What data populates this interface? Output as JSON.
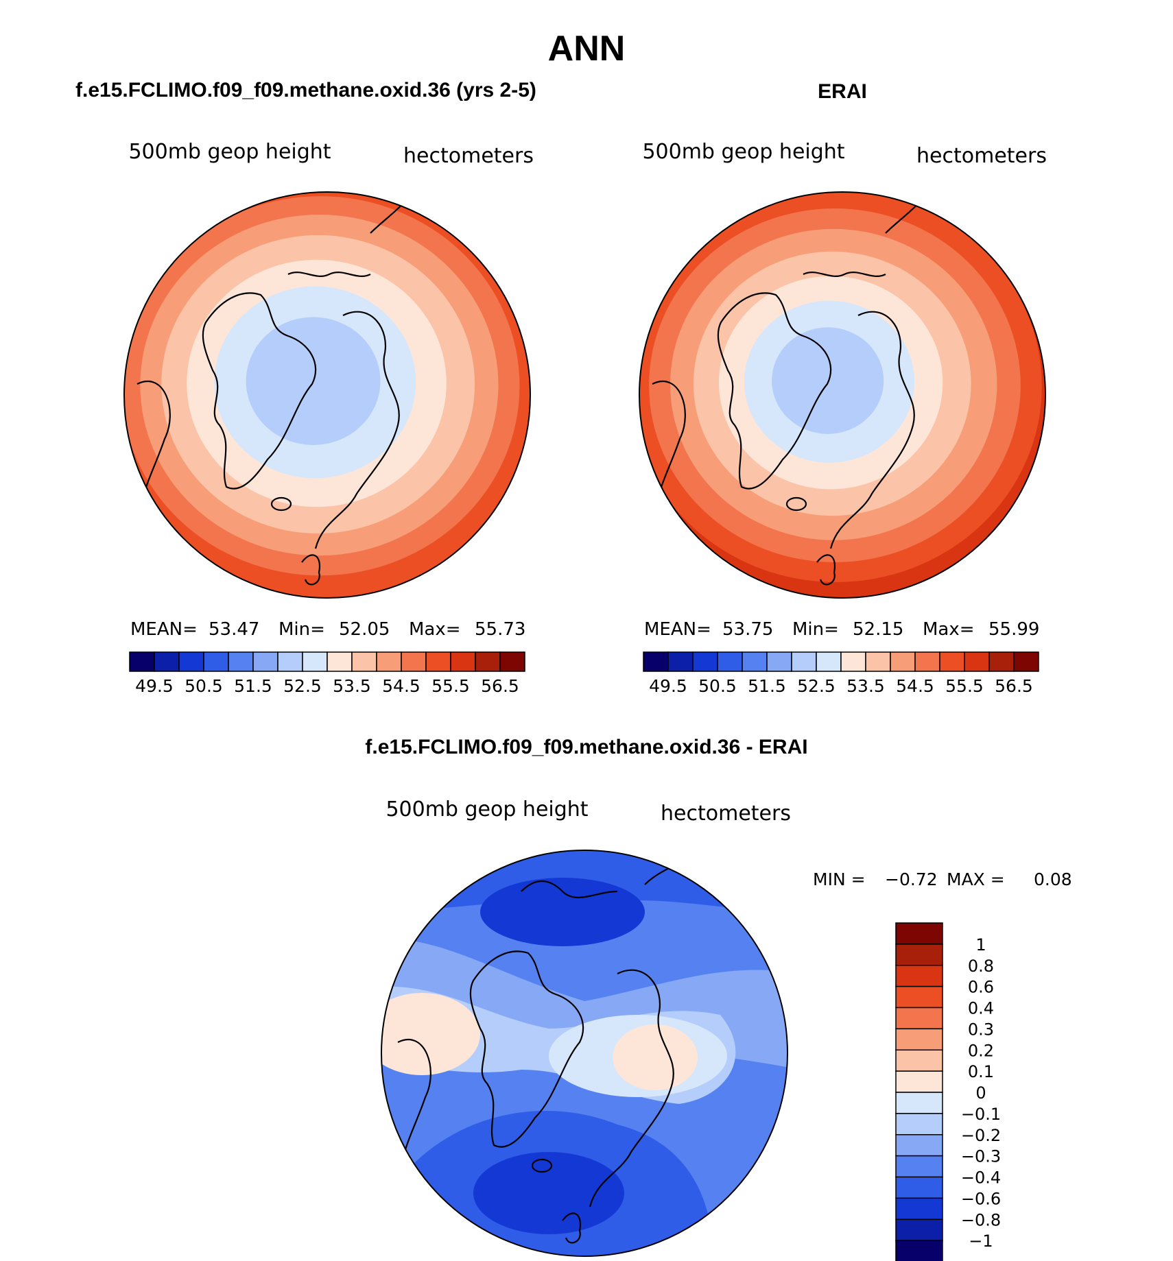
{
  "chart_data": {
    "type": "contour-map",
    "title": "ANN",
    "color_scale": [
      "#08006a",
      "#0b1fa8",
      "#1438d4",
      "#2f5de8",
      "#5582f0",
      "#86a8f5",
      "#b4cdfa",
      "#d6e6fb",
      "#fde6d8",
      "#fbc3a7",
      "#f79d78",
      "#f2754e",
      "#ec4f24",
      "#d93512",
      "#a9200a",
      "#7d0502"
    ],
    "diff_color_scale": [
      "#08006a",
      "#0b1fa8",
      "#1438d4",
      "#2f5de8",
      "#5582f0",
      "#86a8f5",
      "#b4cdfa",
      "#d6e6fb",
      "#fde6d8",
      "#fbc3a7",
      "#f79d78",
      "#f2754e",
      "#ec4f24",
      "#d93512",
      "#a9200a",
      "#7d0502"
    ],
    "panels": [
      {
        "heading": "f.e15.FCLIMO.f09_f09.methane.oxid.36 (yrs 2-5)",
        "variable": "500mb geop height",
        "units": "hectometers",
        "mean_label": "MEAN=",
        "mean": "53.47",
        "min_label": "Min=",
        "min": "52.05",
        "max_label": "Max=",
        "max": "55.73",
        "colorbar_ticks": [
          "49.5",
          "50.5",
          "51.5",
          "52.5",
          "53.5",
          "54.5",
          "55.5",
          "56.5"
        ],
        "field_levels": [
          0.3,
          0.45,
          0.58,
          0.7,
          0.8,
          0.89,
          0.96
        ],
        "field_colors": [
          "#b4cdfa",
          "#d6e6fb",
          "#fde6d8",
          "#fbc3a7",
          "#f79d78",
          "#f2754e",
          "#ec4f24",
          "#ec4f24"
        ]
      },
      {
        "heading": "ERAI",
        "variable": "500mb geop height",
        "units": "hectometers",
        "mean_label": "MEAN=",
        "mean": "53.75",
        "min_label": "Min=",
        "min": "52.15",
        "max_label": "Max=",
        "max": "55.99",
        "colorbar_ticks": [
          "49.5",
          "50.5",
          "51.5",
          "52.5",
          "53.5",
          "54.5",
          "55.5",
          "56.5"
        ],
        "field_levels": [
          0.25,
          0.38,
          0.5,
          0.62,
          0.73,
          0.83,
          0.92
        ],
        "field_colors": [
          "#b4cdfa",
          "#d6e6fb",
          "#fde6d8",
          "#fbc3a7",
          "#f79d78",
          "#f2754e",
          "#ec4f24",
          "#d93512"
        ]
      }
    ],
    "difference": {
      "heading": "f.e15.FCLIMO.f09_f09.methane.oxid.36 - ERAI",
      "variable": "500mb geop height",
      "units": "hectometers",
      "min_label": "MIN =",
      "min": "−0.72",
      "max_label": "MAX =",
      "max": "0.08",
      "colorbar_ticks": [
        "1",
        "0.8",
        "0.6",
        "0.4",
        "0.3",
        "0.2",
        "0.1",
        "0",
        "−0.1",
        "−0.2",
        "−0.3",
        "−0.4",
        "−0.6",
        "−0.8",
        "−1"
      ]
    }
  }
}
